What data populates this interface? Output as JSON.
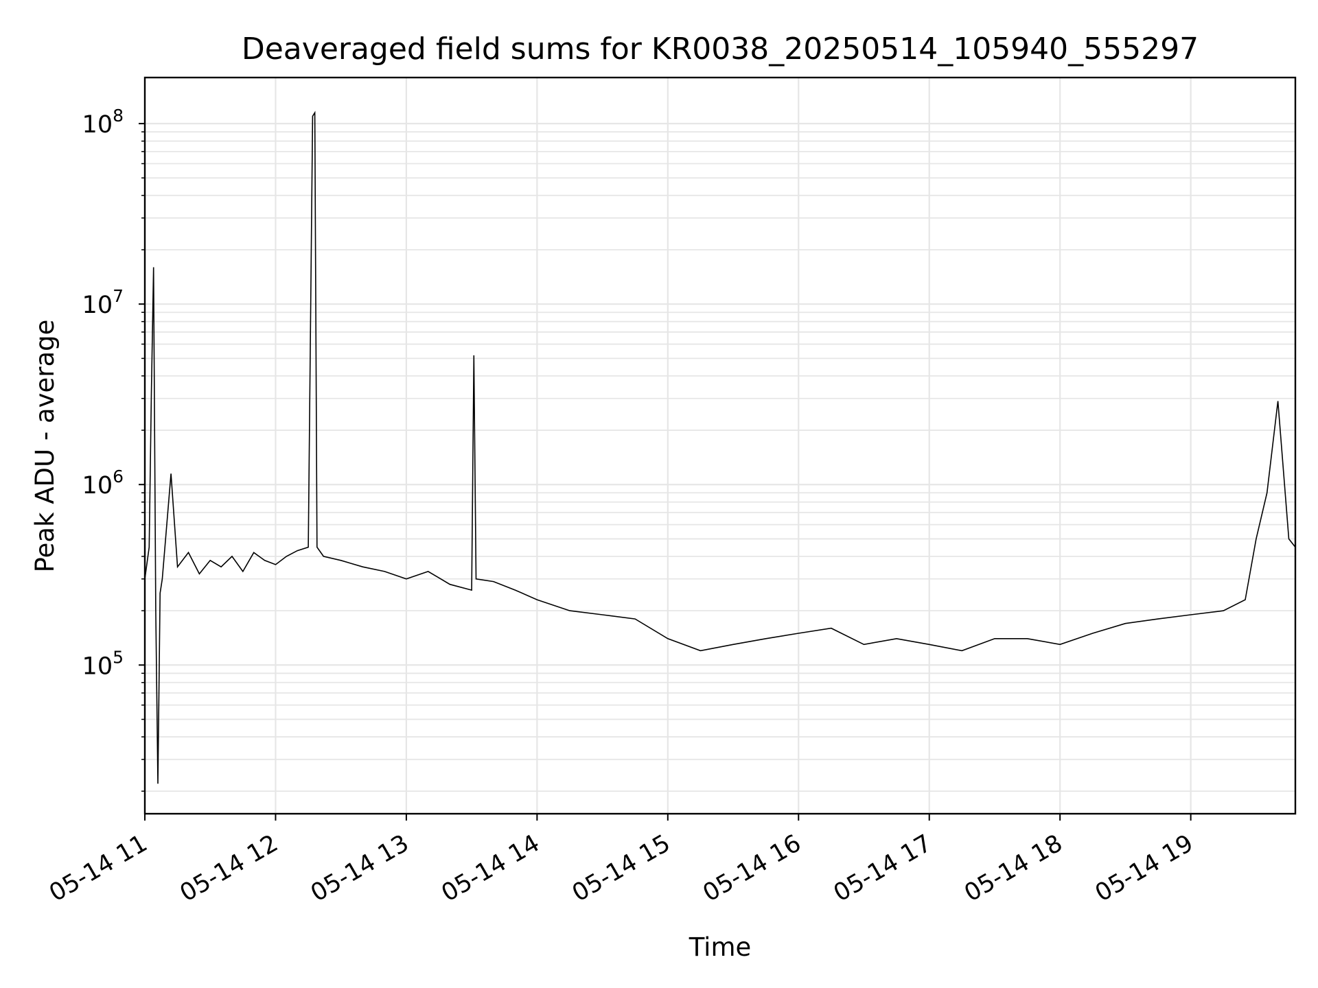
{
  "chart_data": {
    "type": "line",
    "title": "Deaveraged field sums for KR0038_20250514_105940_555297",
    "xlabel": "Time",
    "ylabel": "Peak ADU - average",
    "yscale": "log",
    "grid": true,
    "line_color": "#000000",
    "grid_color": "#e6e6e6",
    "x_tick_labels": [
      "05-14 11",
      "05-14 12",
      "05-14 13",
      "05-14 14",
      "05-14 15",
      "05-14 16",
      "05-14 17",
      "05-14 18",
      "05-14 19"
    ],
    "x_range": [
      "2025-05-14 11:00",
      "2025-05-14 19:48"
    ],
    "ylim": [
      15000,
      180000000
    ],
    "y_tick_labels": [
      {
        "base": "10",
        "exp": "5",
        "value": 100000
      },
      {
        "base": "10",
        "exp": "6",
        "value": 1000000
      },
      {
        "base": "10",
        "exp": "7",
        "value": 10000000
      },
      {
        "base": "10",
        "exp": "8",
        "value": 100000000
      }
    ],
    "series": [
      {
        "x": [
          "2025-05-14 11:00",
          "2025-05-14 11:02",
          "2025-05-14 11:03",
          "2025-05-14 11:04",
          "2025-05-14 11:05",
          "2025-05-14 11:06",
          "2025-05-14 11:07",
          "2025-05-14 11:08",
          "2025-05-14 11:12",
          "2025-05-14 11:15",
          "2025-05-14 11:20",
          "2025-05-14 11:25",
          "2025-05-14 11:30",
          "2025-05-14 11:35",
          "2025-05-14 11:40",
          "2025-05-14 11:45",
          "2025-05-14 11:50",
          "2025-05-14 11:55",
          "2025-05-14 12:00",
          "2025-05-14 12:05",
          "2025-05-14 12:10",
          "2025-05-14 12:15",
          "2025-05-14 12:17",
          "2025-05-14 12:18",
          "2025-05-14 12:19",
          "2025-05-14 12:22",
          "2025-05-14 12:30",
          "2025-05-14 12:40",
          "2025-05-14 12:50",
          "2025-05-14 13:00",
          "2025-05-14 13:10",
          "2025-05-14 13:20",
          "2025-05-14 13:30",
          "2025-05-14 13:31",
          "2025-05-14 13:32",
          "2025-05-14 13:40",
          "2025-05-14 13:50",
          "2025-05-14 14:00",
          "2025-05-14 14:15",
          "2025-05-14 14:30",
          "2025-05-14 14:45",
          "2025-05-14 15:00",
          "2025-05-14 15:15",
          "2025-05-14 15:30",
          "2025-05-14 15:45",
          "2025-05-14 16:00",
          "2025-05-14 16:15",
          "2025-05-14 16:30",
          "2025-05-14 16:45",
          "2025-05-14 17:00",
          "2025-05-14 17:15",
          "2025-05-14 17:30",
          "2025-05-14 17:45",
          "2025-05-14 18:00",
          "2025-05-14 18:15",
          "2025-05-14 18:30",
          "2025-05-14 18:45",
          "2025-05-14 19:00",
          "2025-05-14 19:15",
          "2025-05-14 19:25",
          "2025-05-14 19:30",
          "2025-05-14 19:35",
          "2025-05-14 19:40",
          "2025-05-14 19:45",
          "2025-05-14 19:48"
        ],
        "y": [
          300000,
          450000,
          3200000,
          16000000,
          200000,
          22000,
          250000,
          300000,
          1150000,
          350000,
          420000,
          320000,
          380000,
          350000,
          400000,
          330000,
          420000,
          380000,
          360000,
          400000,
          430000,
          450000,
          110000000,
          115000000,
          450000,
          400000,
          380000,
          350000,
          330000,
          300000,
          330000,
          280000,
          260000,
          5200000,
          300000,
          290000,
          260000,
          230000,
          200000,
          190000,
          180000,
          140000,
          120000,
          130000,
          140000,
          150000,
          160000,
          130000,
          140000,
          130000,
          120000,
          140000,
          140000,
          130000,
          150000,
          170000,
          180000,
          190000,
          200000,
          230000,
          500000,
          900000,
          2900000,
          500000,
          450000
        ]
      }
    ]
  }
}
